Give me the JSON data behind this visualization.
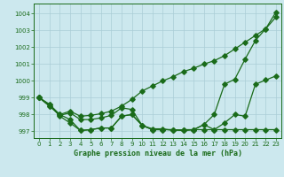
{
  "title": "Graphe pression niveau de la mer (hPa)",
  "bg_color": "#cce8ee",
  "grid_color": "#aacdd6",
  "line_color": "#1a6b1a",
  "xlim": [
    -0.5,
    23.5
  ],
  "ylim": [
    996.6,
    1004.6
  ],
  "yticks": [
    997,
    998,
    999,
    1000,
    1001,
    1002,
    1003,
    1004
  ],
  "xticks": [
    0,
    1,
    2,
    3,
    4,
    5,
    6,
    7,
    8,
    9,
    10,
    11,
    12,
    13,
    14,
    15,
    16,
    17,
    18,
    19,
    20,
    21,
    22,
    23
  ],
  "line1": [
    999.0,
    998.6,
    997.9,
    997.5,
    997.05,
    997.1,
    997.2,
    997.2,
    997.9,
    998.0,
    997.35,
    997.1,
    997.1,
    997.1,
    997.05,
    997.1,
    997.4,
    997.1,
    997.5,
    998.0,
    997.9,
    999.8,
    1000.05,
    1000.3
  ],
  "line2": [
    999.0,
    998.5,
    997.95,
    998.1,
    997.7,
    997.7,
    997.8,
    997.95,
    998.4,
    998.3,
    997.35,
    997.15,
    997.15,
    997.05,
    997.1,
    997.1,
    997.1,
    997.1,
    997.1,
    997.1,
    997.1,
    997.1,
    997.1,
    997.1
  ],
  "line3": [
    999.0,
    998.5,
    998.0,
    998.2,
    997.9,
    997.95,
    998.05,
    998.2,
    998.5,
    998.9,
    999.4,
    999.7,
    1000.0,
    1000.25,
    1000.55,
    1000.75,
    1001.0,
    1001.2,
    1001.5,
    1001.9,
    1002.3,
    1002.7,
    1003.1,
    1003.8
  ],
  "line4": [
    999.0,
    998.6,
    998.0,
    997.7,
    997.05,
    997.1,
    997.2,
    997.2,
    997.9,
    998.0,
    997.35,
    997.1,
    997.1,
    997.1,
    997.05,
    997.1,
    997.4,
    998.0,
    999.8,
    1000.1,
    1001.3,
    1002.4,
    1003.1,
    1004.1
  ]
}
